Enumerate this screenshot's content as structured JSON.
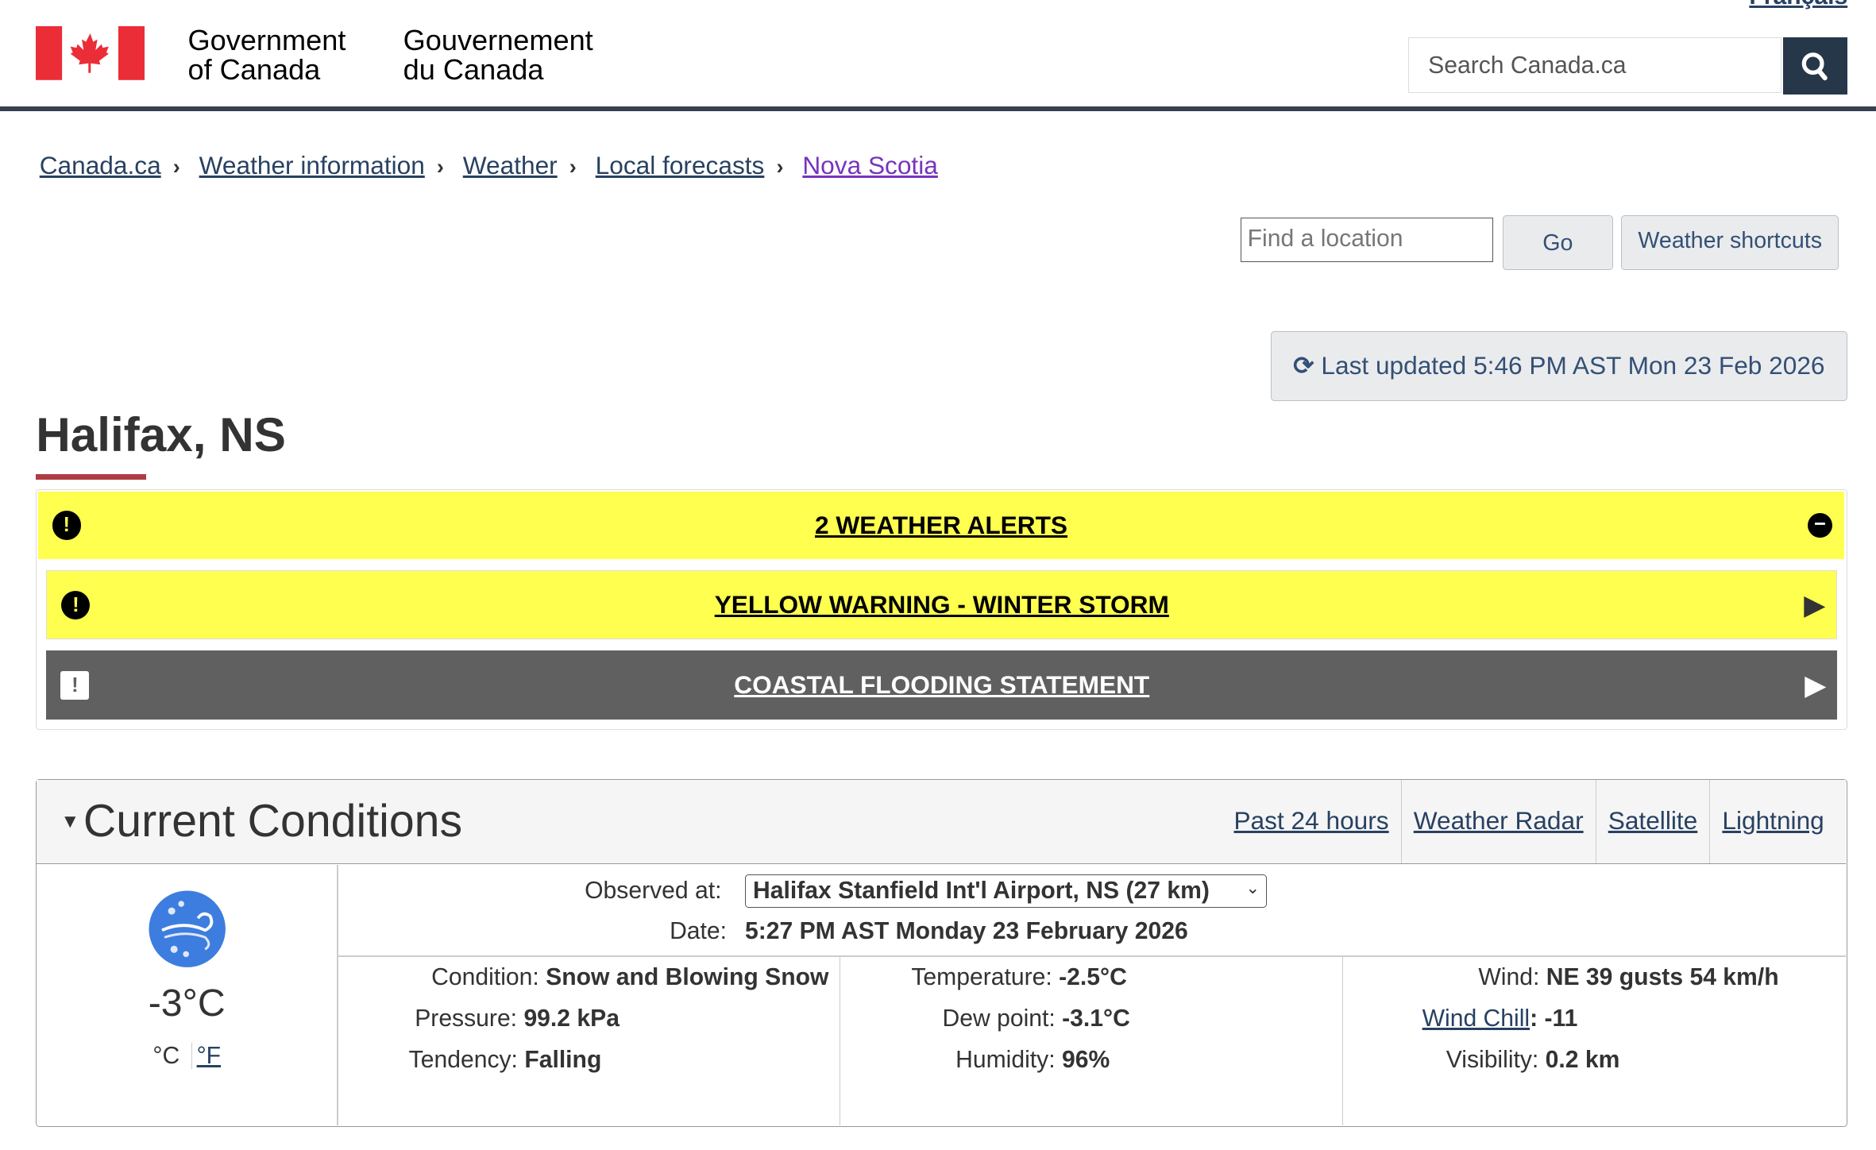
{
  "header": {
    "lang_link": "Français",
    "gov_en": [
      "Government",
      "of Canada"
    ],
    "gov_fr": [
      "Gouvernement",
      "du Canada"
    ],
    "search_placeholder": "Search Canada.ca",
    "search_icon": "magnifier-icon"
  },
  "breadcrumb": [
    "Canada.ca",
    "Weather information",
    "Weather",
    "Local forecasts",
    "Nova Scotia"
  ],
  "tools": {
    "find_placeholder": "Find a location",
    "go": "Go",
    "shortcuts": "Weather shortcuts"
  },
  "last_updated": {
    "label": "Last updated",
    "value": "5:46 PM AST Mon 23 Feb 2026"
  },
  "title": "Halifax, NS",
  "alerts": {
    "header": "2 WEATHER ALERTS",
    "items": [
      {
        "label": "YELLOW WARNING - WINTER STORM",
        "color": "#ffff4f"
      },
      {
        "label": "COASTAL FLOODING STATEMENT",
        "color": "#606060"
      }
    ],
    "header_color": "#ffff4f"
  },
  "current": {
    "title": "Current Conditions",
    "links": [
      "Past 24 hours",
      "Weather Radar",
      "Satellite",
      "Lightning"
    ],
    "temp": "-3°C",
    "unit_c": "°C",
    "unit_f": "°F",
    "observed_label": "Observed at:",
    "observed_value": "Halifax Stanfield Int'l Airport, NS (27 km)",
    "date_label": "Date:",
    "date_value": "5:27 PM AST Monday 23 February 2026",
    "col1": [
      [
        "Condition:",
        "Snow and Blowing Snow"
      ],
      [
        "Pressure:",
        "99.2 kPa"
      ],
      [
        "Tendency:",
        "Falling"
      ]
    ],
    "col2": [
      [
        "Temperature:",
        "-2.5°C"
      ],
      [
        "Dew point:",
        "-3.1°C"
      ],
      [
        "Humidity:",
        "96%"
      ]
    ],
    "col3": [
      [
        "Wind:",
        "NE 39 gusts 54 km/h"
      ],
      [
        "Wind Chill",
        ": -11"
      ],
      [
        "Visibility:",
        "0.2 km"
      ]
    ]
  }
}
